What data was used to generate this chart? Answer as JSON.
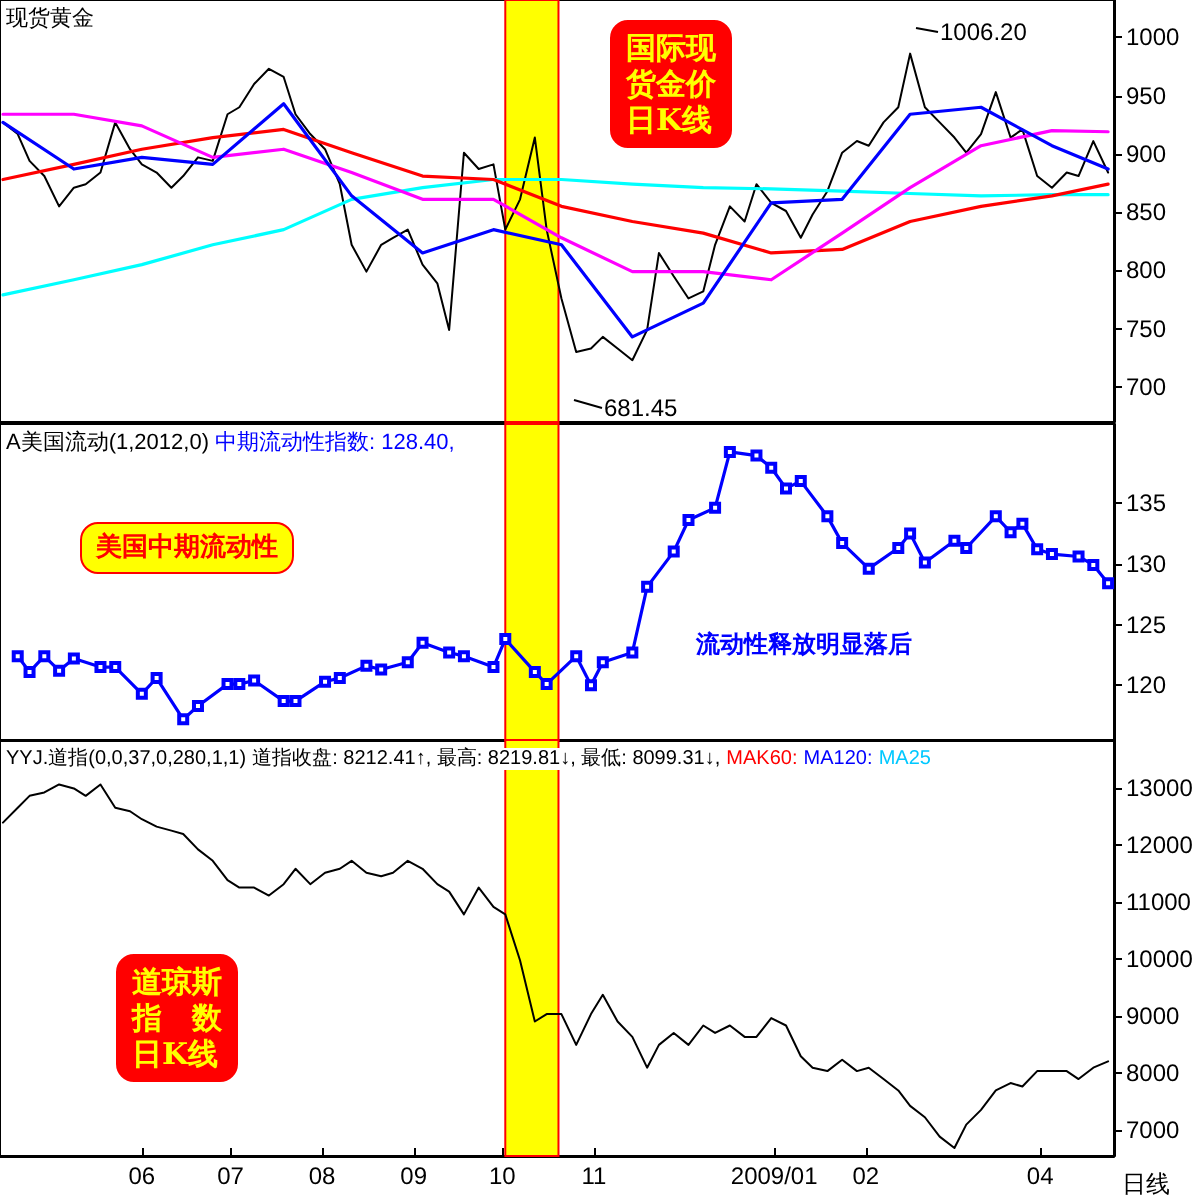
{
  "chart_data": [
    {
      "type": "line",
      "title": "现货黄金",
      "x": [
        "2008-04-15",
        "2008-04-20",
        "2008-04-24",
        "2008-04-29",
        "2008-05-04",
        "2008-05-09",
        "2008-05-13",
        "2008-05-18",
        "2008-05-23",
        "2008-05-28",
        "2008-06-01",
        "2008-06-06",
        "2008-06-11",
        "2008-06-15",
        "2008-06-20",
        "2008-06-25",
        "2008-06-30",
        "2008-07-04",
        "2008-07-09",
        "2008-07-14",
        "2008-07-19",
        "2008-07-23",
        "2008-07-28",
        "2008-08-02",
        "2008-08-07",
        "2008-08-11",
        "2008-08-16",
        "2008-08-21",
        "2008-08-25",
        "2008-08-30",
        "2008-09-04",
        "2008-09-09",
        "2008-09-13",
        "2008-09-18",
        "2008-09-23",
        "2008-09-28",
        "2008-10-02",
        "2008-10-07",
        "2008-10-12",
        "2008-10-16",
        "2008-10-21",
        "2008-10-26",
        "2008-10-31",
        "2008-11-04",
        "2008-11-09",
        "2008-11-14",
        "2008-11-19",
        "2008-11-23",
        "2008-11-28",
        "2008-12-03",
        "2008-12-08",
        "2008-12-12",
        "2008-12-17",
        "2008-12-22",
        "2008-12-26",
        "2008-12-31",
        "2009-01-05",
        "2009-01-10",
        "2009-01-14",
        "2009-01-19",
        "2009-01-24",
        "2009-01-29",
        "2009-02-02",
        "2009-02-07",
        "2009-02-12",
        "2009-02-16",
        "2009-02-21",
        "2009-02-26",
        "2009-03-03",
        "2009-03-07",
        "2009-03-12",
        "2009-03-17",
        "2009-03-22",
        "2009-03-26",
        "2009-03-31",
        "2009-04-05",
        "2009-04-10",
        "2009-04-14",
        "2009-04-19",
        "2009-04-24"
      ],
      "series": [
        {
          "color": "#000000",
          "values": [
            927,
            917,
            894,
            881,
            855,
            871,
            874,
            884,
            927,
            904,
            891,
            884,
            871,
            881,
            897,
            894,
            934,
            940,
            960,
            973,
            966,
            934,
            917,
            904,
            874,
            822,
            799,
            822,
            828,
            835,
            805,
            789,
            749,
            901,
            887,
            891,
            835,
            861,
            914,
            835,
            776,
            730,
            733,
            743,
            733,
            723,
            749,
            815,
            795,
            776,
            782,
            822,
            855,
            842,
            874,
            858,
            851,
            828,
            848,
            868,
            901,
            911,
            907,
            927,
            940,
            986,
            940,
            927,
            914,
            901,
            917,
            953,
            914,
            921,
            881,
            871,
            884,
            881,
            911,
            884
          ]
        },
        {
          "color": "#00ffff",
          "x": [
            "2008-04-15",
            "2008-05-09",
            "2008-06-01",
            "2008-06-25",
            "2008-07-19",
            "2008-08-11",
            "2008-09-04",
            "2008-09-28",
            "2008-10-21",
            "2008-11-14",
            "2008-12-08",
            "2008-12-31",
            "2009-01-24",
            "2009-02-16",
            "2009-03-12",
            "2009-04-05",
            "2009-04-24"
          ],
          "values": [
            779,
            792,
            805,
            822,
            835,
            861,
            871,
            878,
            878,
            874,
            871,
            870,
            868,
            866,
            864,
            865,
            865
          ]
        },
        {
          "color": "#ff0000",
          "x": [
            "2008-04-15",
            "2008-05-09",
            "2008-06-01",
            "2008-06-25",
            "2008-07-19",
            "2008-08-11",
            "2008-09-04",
            "2008-09-28",
            "2008-10-21",
            "2008-11-14",
            "2008-12-08",
            "2008-12-31",
            "2009-01-24",
            "2009-02-16",
            "2009-03-12",
            "2009-04-05",
            "2009-04-24"
          ],
          "values": [
            878,
            891,
            904,
            914,
            921,
            901,
            881,
            878,
            855,
            842,
            832,
            815,
            818,
            842,
            855,
            864,
            874
          ]
        },
        {
          "color": "#ff00ff",
          "x": [
            "2008-04-15",
            "2008-05-09",
            "2008-06-01",
            "2008-06-25",
            "2008-07-19",
            "2008-08-11",
            "2008-09-04",
            "2008-09-28",
            "2008-10-21",
            "2008-11-14",
            "2008-12-08",
            "2008-12-31",
            "2009-01-24",
            "2009-02-16",
            "2009-03-12",
            "2009-04-05",
            "2009-04-24"
          ],
          "values": [
            934,
            934,
            924,
            897,
            904,
            884,
            861,
            861,
            828,
            799,
            799,
            792,
            832,
            871,
            907,
            920,
            919
          ]
        },
        {
          "color": "#0000ff",
          "x": [
            "2008-04-15",
            "2008-05-09",
            "2008-06-01",
            "2008-06-25",
            "2008-07-19",
            "2008-08-11",
            "2008-09-04",
            "2008-09-28",
            "2008-10-21",
            "2008-11-14",
            "2008-12-08",
            "2008-12-31",
            "2009-01-24",
            "2009-02-16",
            "2009-03-12",
            "2009-04-05",
            "2009-04-24"
          ],
          "values": [
            927,
            887,
            897,
            891,
            943,
            864,
            815,
            835,
            822,
            743,
            772,
            858,
            861,
            934,
            940,
            907,
            887
          ]
        }
      ],
      "xlim": [
        "2008-04-14",
        "2009-04-26"
      ],
      "ylim": [
        670,
        1032
      ],
      "yticks": [
        700,
        750,
        800,
        850,
        900,
        950,
        1000
      ],
      "tick_labels": "y",
      "marker": "none",
      "bands": [
        {
          "axis": "x",
          "from": "2008-10-02",
          "to": "2008-10-20",
          "color": "#ffff00"
        }
      ],
      "annotations": [
        "国际现货金价日K线",
        "1006.20",
        "681.45"
      ]
    },
    {
      "type": "line",
      "title": "A美国流动(1,2012,0)",
      "series": [
        {
          "name": "中期流动性指数: 128.40,",
          "color": "#0000ff",
          "x": [
            "2008-04-20",
            "2008-04-24",
            "2008-04-29",
            "2008-05-04",
            "2008-05-09",
            "2008-05-18",
            "2008-05-23",
            "2008-06-01",
            "2008-06-06",
            "2008-06-15",
            "2008-06-20",
            "2008-06-30",
            "2008-07-04",
            "2008-07-09",
            "2008-07-19",
            "2008-07-23",
            "2008-08-02",
            "2008-08-07",
            "2008-08-16",
            "2008-08-21",
            "2008-08-30",
            "2008-09-04",
            "2008-09-13",
            "2008-09-18",
            "2008-09-28",
            "2008-10-02",
            "2008-10-12",
            "2008-10-16",
            "2008-10-26",
            "2008-10-31",
            "2008-11-04",
            "2008-11-14",
            "2008-11-19",
            "2008-11-28",
            "2008-12-03",
            "2008-12-12",
            "2008-12-17",
            "2008-12-26",
            "2008-12-31",
            "2009-01-05",
            "2009-01-10",
            "2009-01-19",
            "2009-01-24",
            "2009-02-02",
            "2009-02-12",
            "2009-02-16",
            "2009-02-21",
            "2009-03-03",
            "2009-03-07",
            "2009-03-17",
            "2009-03-22",
            "2009-03-26",
            "2009-03-31",
            "2009-04-05",
            "2009-04-14",
            "2009-04-19",
            "2009-04-24"
          ],
          "values": [
            122.4,
            121.1,
            122.4,
            121.2,
            122.2,
            121.5,
            121.5,
            119.3,
            120.6,
            117.2,
            118.3,
            120.1,
            120.1,
            120.4,
            118.7,
            118.7,
            120.3,
            120.6,
            121.6,
            121.3,
            121.9,
            123.5,
            122.7,
            122.4,
            121.5,
            123.8,
            121.1,
            120.1,
            122.4,
            120.0,
            121.9,
            122.7,
            128.1,
            131.0,
            133.6,
            134.6,
            139.2,
            138.9,
            137.9,
            136.2,
            136.8,
            133.9,
            131.7,
            129.6,
            131.3,
            132.5,
            130.1,
            131.9,
            131.3,
            133.9,
            132.6,
            133.3,
            131.2,
            130.8,
            130.6,
            129.9,
            128.4
          ]
        }
      ],
      "xlim": [
        "2008-04-14",
        "2009-04-26"
      ],
      "ylim": [
        115.5,
        141.5
      ],
      "yticks": [
        120,
        125,
        130,
        135
      ],
      "tick_labels": "y",
      "marker": "square",
      "bands": [
        {
          "axis": "x",
          "from": "2008-10-02",
          "to": "2008-10-20",
          "color": "#ffff00"
        }
      ],
      "annotations": [
        "美国中期流动性",
        "流动性释放明显落后"
      ]
    },
    {
      "type": "line",
      "title": "YYJ.道指(0,0,37,0,280,1,1)",
      "subtitle": "道指收盘: 8212.41↑, 最高: 8219.81↓, 最低: 8099.31↓,",
      "x": [
        "2008-04-15",
        "2008-04-20",
        "2008-04-24",
        "2008-04-29",
        "2008-05-04",
        "2008-05-09",
        "2008-05-13",
        "2008-05-18",
        "2008-05-23",
        "2008-05-28",
        "2008-06-01",
        "2008-06-06",
        "2008-06-11",
        "2008-06-15",
        "2008-06-20",
        "2008-06-25",
        "2008-06-30",
        "2008-07-04",
        "2008-07-09",
        "2008-07-14",
        "2008-07-19",
        "2008-07-23",
        "2008-07-28",
        "2008-08-02",
        "2008-08-07",
        "2008-08-11",
        "2008-08-16",
        "2008-08-21",
        "2008-08-25",
        "2008-08-30",
        "2008-09-04",
        "2008-09-09",
        "2008-09-13",
        "2008-09-18",
        "2008-09-23",
        "2008-09-28",
        "2008-10-02",
        "2008-10-07",
        "2008-10-12",
        "2008-10-16",
        "2008-10-21",
        "2008-10-26",
        "2008-10-31",
        "2008-11-04",
        "2008-11-09",
        "2008-11-14",
        "2008-11-19",
        "2008-11-23",
        "2008-11-28",
        "2008-12-03",
        "2008-12-08",
        "2008-12-12",
        "2008-12-17",
        "2008-12-22",
        "2008-12-26",
        "2008-12-31",
        "2009-01-05",
        "2009-01-10",
        "2009-01-14",
        "2009-01-19",
        "2009-01-24",
        "2009-01-29",
        "2009-02-02",
        "2009-02-07",
        "2009-02-12",
        "2009-02-16",
        "2009-02-21",
        "2009-02-26",
        "2009-03-03",
        "2009-03-07",
        "2009-03-12",
        "2009-03-17",
        "2009-03-22",
        "2009-03-26",
        "2009-03-31",
        "2009-04-05",
        "2009-04-10",
        "2009-04-14",
        "2009-04-19",
        "2009-04-24"
      ],
      "series": [
        {
          "color": "#000000",
          "values": [
            12400,
            12660,
            12870,
            12930,
            13070,
            13000,
            12870,
            13070,
            12660,
            12600,
            12460,
            12330,
            12260,
            12200,
            11930,
            11730,
            11390,
            11260,
            11260,
            11120,
            11320,
            11590,
            11320,
            11520,
            11590,
            11730,
            11520,
            11460,
            11520,
            11730,
            11590,
            11320,
            11190,
            10790,
            11260,
            10920,
            10790,
            9980,
            8910,
            9040,
            9040,
            8500,
            9040,
            9380,
            8910,
            8640,
            8100,
            8500,
            8710,
            8500,
            8840,
            8710,
            8840,
            8640,
            8640,
            8970,
            8840,
            8300,
            8100,
            8040,
            8240,
            8040,
            8100,
            7900,
            7700,
            7430,
            7230,
            6890,
            6690,
            7100,
            7360,
            7700,
            7830,
            7770,
            8040,
            8040,
            8040,
            7900,
            8100,
            8210
          ]
        }
      ],
      "xlim": [
        "2008-04-14",
        "2009-04-26"
      ],
      "ylim": [
        6550,
        13850
      ],
      "yticks": [
        7000,
        8000,
        9000,
        10000,
        11000,
        12000,
        13000
      ],
      "marker": "none",
      "xticks": [
        {
          "value": "2008-06-01",
          "label": "06"
        },
        {
          "value": "2008-07-01",
          "label": "07"
        },
        {
          "value": "2008-08-01",
          "label": "08"
        },
        {
          "value": "2008-09-01",
          "label": "09"
        },
        {
          "value": "2008-10-01",
          "label": "10"
        },
        {
          "value": "2008-11-01",
          "label": "11"
        },
        {
          "value": "2009-01-01",
          "label": "2009/01"
        },
        {
          "value": "2009-02-01",
          "label": "02"
        },
        {
          "value": "2009-04-01",
          "label": "04"
        }
      ],
      "bands": [
        {
          "axis": "x",
          "from": "2008-10-02",
          "to": "2008-10-20",
          "color": "#ffff00"
        }
      ],
      "annotations": [
        "MAK60:",
        "MA120:",
        "MA25",
        "道琼斯指数日K线",
        "日线"
      ]
    }
  ]
}
